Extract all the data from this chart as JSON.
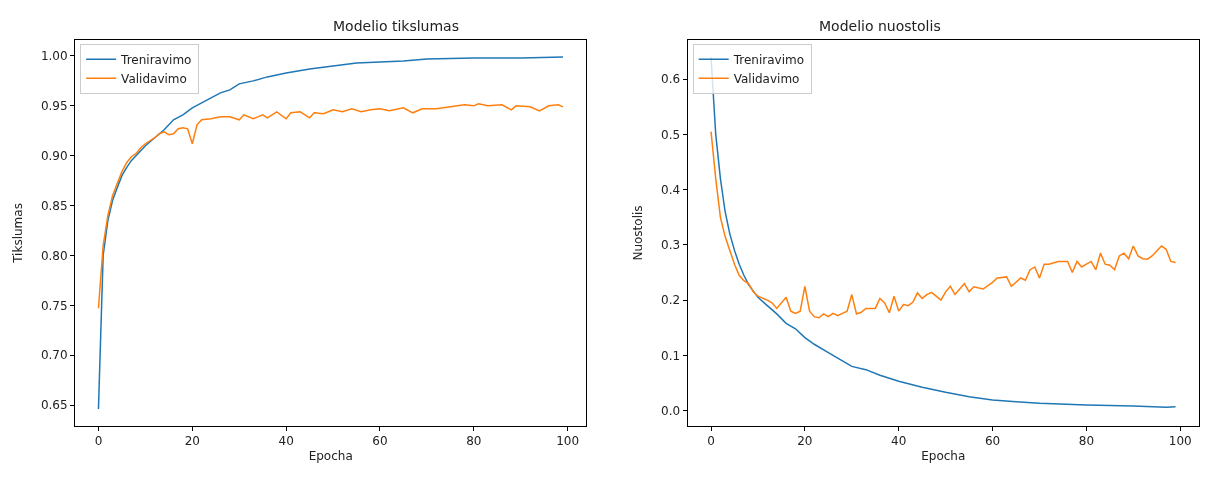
{
  "chart_data": [
    {
      "type": "line",
      "title": "Modelio tikslumas",
      "xlabel": "Epocha",
      "ylabel": "Tikslumas",
      "xlim": [
        -5,
        104
      ],
      "xticks": [
        0,
        20,
        40,
        60,
        80,
        100
      ],
      "ylim": [
        0.629,
        1.016
      ],
      "yticks": [
        {
          "value": 0.65,
          "label": "0.65"
        },
        {
          "value": 0.7,
          "label": "0.70"
        },
        {
          "value": 0.75,
          "label": "0.75"
        },
        {
          "value": 0.8,
          "label": "0.80"
        },
        {
          "value": 0.85,
          "label": "0.85"
        },
        {
          "value": 0.9,
          "label": "0.90"
        },
        {
          "value": 0.95,
          "label": "0.95"
        },
        {
          "value": 1.0,
          "label": "1.00"
        }
      ],
      "legend": "top left",
      "marker": "none",
      "line_style": "solid",
      "series": [
        {
          "name": "Treniravimo",
          "color": "#1f77b4",
          "x": [
            0,
            1,
            2,
            3,
            4,
            5,
            6,
            7,
            8,
            10,
            12,
            14,
            16,
            18,
            20,
            22,
            24,
            26,
            28,
            30,
            33,
            36,
            40,
            45,
            50,
            55,
            60,
            65,
            70,
            80,
            90,
            99
          ],
          "values": [
            0.646,
            0.8,
            0.835,
            0.855,
            0.868,
            0.88,
            0.888,
            0.895,
            0.9,
            0.91,
            0.918,
            0.926,
            0.936,
            0.941,
            0.948,
            0.953,
            0.958,
            0.963,
            0.966,
            0.972,
            0.975,
            0.979,
            0.983,
            0.987,
            0.99,
            0.993,
            0.994,
            0.995,
            0.997,
            0.998,
            0.998,
            0.999
          ]
        },
        {
          "name": "Validavimo",
          "color": "#ff7f0e",
          "x": [
            0,
            1,
            2,
            3,
            4,
            5,
            6,
            7,
            8,
            9,
            10,
            12,
            13,
            14,
            15,
            16,
            17,
            18,
            19,
            20,
            21,
            22,
            24,
            26,
            28,
            30,
            31,
            33,
            35,
            36,
            38,
            40,
            41,
            43,
            45,
            46,
            48,
            50,
            52,
            54,
            56,
            58,
            60,
            62,
            65,
            67,
            69,
            72,
            75,
            78,
            80,
            81,
            83,
            86,
            88,
            89,
            92,
            94,
            96,
            98,
            99
          ],
          "values": [
            0.747,
            0.81,
            0.84,
            0.86,
            0.872,
            0.884,
            0.893,
            0.899,
            0.902,
            0.908,
            0.912,
            0.918,
            0.922,
            0.924,
            0.921,
            0.922,
            0.927,
            0.928,
            0.927,
            0.912,
            0.931,
            0.936,
            0.937,
            0.939,
            0.939,
            0.936,
            0.941,
            0.937,
            0.941,
            0.938,
            0.944,
            0.937,
            0.943,
            0.944,
            0.938,
            0.943,
            0.942,
            0.946,
            0.944,
            0.947,
            0.944,
            0.946,
            0.947,
            0.945,
            0.948,
            0.943,
            0.947,
            0.947,
            0.949,
            0.951,
            0.95,
            0.952,
            0.95,
            0.951,
            0.946,
            0.95,
            0.949,
            0.945,
            0.95,
            0.951,
            0.949
          ]
        }
      ]
    },
    {
      "type": "line",
      "title": "Modelio nuostolis",
      "xlabel": "Epocha",
      "ylabel": "Nuostolis",
      "xlim": [
        -5,
        104
      ],
      "xticks": [
        0,
        20,
        40,
        60,
        80,
        100
      ],
      "ylim": [
        -0.028,
        0.671
      ],
      "yticks": [
        {
          "value": 0,
          "label": "0.0"
        },
        0.1,
        0.2,
        0.3,
        0.4,
        0.5,
        0.6
      ],
      "legend": "top left",
      "marker": "none",
      "line_style": "solid",
      "series": [
        {
          "name": "Treniravimo",
          "color": "#1f77b4",
          "x": [
            0,
            1,
            2,
            3,
            4,
            5,
            6,
            7,
            8,
            10,
            12,
            14,
            16,
            18,
            20,
            22,
            25,
            28,
            30,
            33,
            36,
            40,
            45,
            50,
            55,
            60,
            65,
            70,
            80,
            90,
            97,
            99
          ],
          "values": [
            0.64,
            0.5,
            0.42,
            0.36,
            0.32,
            0.29,
            0.265,
            0.245,
            0.228,
            0.205,
            0.19,
            0.175,
            0.158,
            0.148,
            0.132,
            0.12,
            0.105,
            0.09,
            0.08,
            0.074,
            0.064,
            0.053,
            0.042,
            0.033,
            0.025,
            0.019,
            0.016,
            0.013,
            0.01,
            0.008,
            0.006,
            0.007
          ]
        },
        {
          "name": "Validavimo",
          "color": "#ff7f0e",
          "x": [
            0,
            1,
            2,
            3,
            4,
            5,
            6,
            7,
            8,
            9,
            10,
            12,
            13,
            14,
            16,
            17,
            18,
            19,
            20,
            21,
            22,
            23,
            24,
            25,
            26,
            27,
            28,
            29,
            30,
            31,
            32,
            33,
            35,
            36,
            37,
            38,
            39,
            40,
            41,
            42,
            43,
            44,
            45,
            46,
            47,
            49,
            50,
            51,
            52,
            53,
            54,
            55,
            56,
            58,
            60,
            61,
            63,
            64,
            66,
            67,
            68,
            69,
            70,
            71,
            72,
            74,
            76,
            77,
            78,
            79,
            80,
            81,
            82,
            83,
            84,
            85,
            86,
            87,
            88,
            89,
            90,
            91,
            92,
            93,
            94,
            96,
            97,
            98,
            99
          ],
          "values": [
            0.505,
            0.42,
            0.35,
            0.315,
            0.29,
            0.265,
            0.245,
            0.235,
            0.23,
            0.215,
            0.207,
            0.2,
            0.195,
            0.185,
            0.205,
            0.18,
            0.176,
            0.18,
            0.225,
            0.18,
            0.17,
            0.168,
            0.175,
            0.17,
            0.176,
            0.172,
            0.176,
            0.18,
            0.21,
            0.175,
            0.178,
            0.185,
            0.185,
            0.203,
            0.195,
            0.177,
            0.207,
            0.18,
            0.192,
            0.19,
            0.196,
            0.213,
            0.203,
            0.21,
            0.214,
            0.2,
            0.215,
            0.225,
            0.21,
            0.22,
            0.23,
            0.215,
            0.224,
            0.22,
            0.232,
            0.24,
            0.242,
            0.225,
            0.24,
            0.236,
            0.255,
            0.26,
            0.24,
            0.265,
            0.265,
            0.27,
            0.27,
            0.25,
            0.27,
            0.26,
            0.265,
            0.27,
            0.255,
            0.285,
            0.265,
            0.263,
            0.255,
            0.28,
            0.285,
            0.275,
            0.298,
            0.28,
            0.275,
            0.274,
            0.28,
            0.298,
            0.292,
            0.27,
            0.268
          ]
        }
      ]
    }
  ]
}
